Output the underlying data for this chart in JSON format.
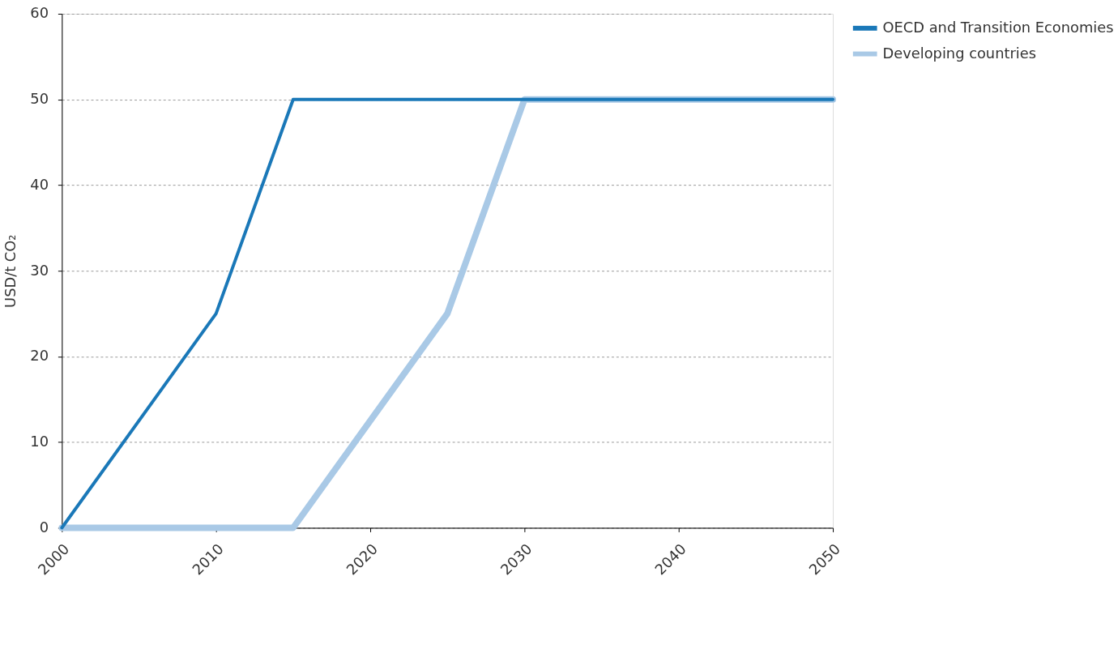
{
  "chart_data": {
    "type": "line",
    "ylabel": "USD/t CO₂",
    "series": [
      {
        "name": "OECD and Transition Economies",
        "color": "#1a78b8",
        "x": [
          2000,
          2010,
          2015,
          2050
        ],
        "values": [
          0,
          25,
          50,
          50
        ]
      },
      {
        "name": "Developing countries",
        "color": "#a9c9e6",
        "x": [
          2000,
          2015,
          2025,
          2030,
          2050
        ],
        "values": [
          0,
          0,
          25,
          50,
          50
        ]
      }
    ],
    "xlim": [
      2000,
      2050
    ],
    "xticks": [
      2000,
      2010,
      2020,
      2030,
      2040,
      2050
    ],
    "ylim": [
      0,
      60
    ],
    "yticks": [
      0,
      10,
      20,
      30,
      40,
      50,
      60
    ],
    "grid": "y",
    "legend": "top right",
    "marker": "none",
    "line_style": "solid"
  }
}
